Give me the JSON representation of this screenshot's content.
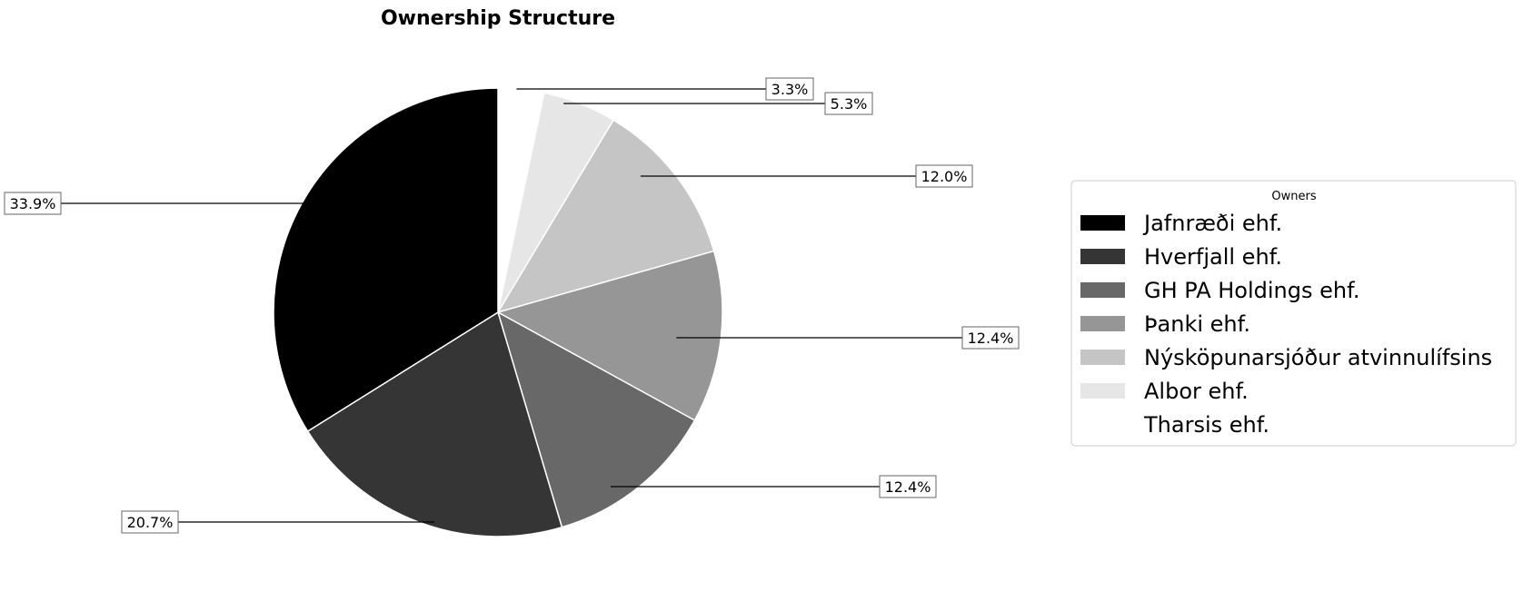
{
  "chart_data": {
    "type": "pie",
    "title": "Ownership Structure",
    "legend_title": "Owners",
    "legend_position": "right",
    "start_angle": 90,
    "direction": "clockwise",
    "slices": [
      {
        "label": "Tharsis ehf.",
        "value": 3.3,
        "pct_label": "3.3%",
        "color": "#ffffff"
      },
      {
        "label": "Albor ehf.",
        "value": 5.3,
        "pct_label": "5.3%",
        "color": "#e6e6e6"
      },
      {
        "label": "Nýsköpunarsjóður atvinnulífsins",
        "value": 12.0,
        "pct_label": "12.0%",
        "color": "#c5c5c5"
      },
      {
        "label": "Þanki ehf.",
        "value": 12.4,
        "pct_label": "12.4%",
        "color": "#969696"
      },
      {
        "label": "GH PA Holdings ehf.",
        "value": 12.4,
        "pct_label": "12.4%",
        "color": "#686868"
      },
      {
        "label": "Hverfjall ehf.",
        "value": 20.7,
        "pct_label": "20.7%",
        "color": "#353535"
      },
      {
        "label": "Jafnræði ehf.",
        "value": 33.9,
        "pct_label": "33.9%",
        "color": "#000000"
      }
    ],
    "legend_order": [
      "Jafnræði ehf.",
      "Hverfjall ehf.",
      "GH PA Holdings ehf.",
      "Þanki ehf.",
      "Nýsköpunarsjóður atvinnulífsins",
      "Albor ehf.",
      "Tharsis ehf."
    ]
  }
}
